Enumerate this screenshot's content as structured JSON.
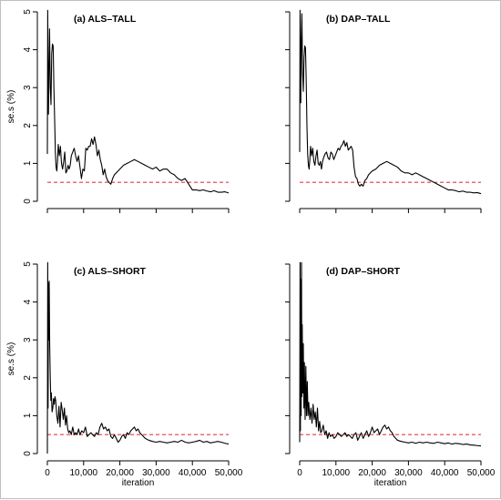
{
  "chart_data": [
    {
      "type": "line",
      "title": "(a) ALS–TALL",
      "ylabel": "se.s (%)",
      "xlabel": "",
      "xlim": [
        0,
        50000
      ],
      "ylim": [
        0,
        5
      ],
      "x_ticks": [
        0,
        10000,
        20000,
        30000,
        40000,
        50000
      ],
      "x_tick_labels": [],
      "y_ticks": [
        0,
        1,
        2,
        3,
        4,
        5
      ],
      "y_tick_labels": [
        "0",
        "1",
        "2",
        "3",
        "4",
        "5"
      ],
      "reference_line": {
        "y": 0.5,
        "color": "#e8383d",
        "style": "dashed"
      },
      "series": [
        {
          "color": "#000000",
          "x": [
            0,
            100,
            200,
            300,
            450,
            600,
            800,
            1000,
            1200,
            1400,
            1600,
            1800,
            2000,
            2200,
            2400,
            2600,
            2800,
            3000,
            3300,
            3600,
            3900,
            4200,
            4500,
            4800,
            5100,
            5400,
            5700,
            6000,
            6300,
            6600,
            7000,
            7400,
            7800,
            8200,
            8600,
            9000,
            9400,
            9800,
            10200,
            10600,
            11000,
            11400,
            11800,
            12200,
            12600,
            13000,
            13400,
            13800,
            14200,
            14600,
            15000,
            15400,
            15800,
            16200,
            16600,
            17000,
            17500,
            18000,
            18500,
            19000,
            19500,
            20000,
            21000,
            22000,
            23000,
            24000,
            25000,
            26000,
            27000,
            28000,
            29000,
            30000,
            31000,
            32000,
            33000,
            34000,
            35000,
            36000,
            37000,
            38000,
            39000,
            40000,
            41000,
            42000,
            43000,
            44000,
            45000,
            46000,
            47000,
            48000,
            49000,
            50000
          ],
          "y": [
            1.25,
            5.2,
            3.3,
            2.3,
            3.5,
            4.55,
            3.0,
            2.55,
            3.9,
            4.15,
            4.1,
            3.0,
            2.2,
            1.3,
            0.9,
            0.8,
            1.05,
            1.5,
            1.2,
            1.45,
            1.0,
            0.85,
            1.05,
            1.3,
            0.75,
            0.8,
            0.95,
            0.85,
            0.95,
            1.2,
            1.3,
            1.4,
            1.2,
            1.05,
            1.2,
            0.9,
            0.6,
            0.85,
            0.8,
            1.4,
            1.35,
            1.45,
            1.45,
            1.65,
            1.5,
            1.7,
            1.5,
            1.2,
            1.35,
            1.1,
            0.95,
            0.7,
            0.85,
            0.65,
            0.55,
            0.5,
            0.45,
            0.6,
            0.7,
            0.75,
            0.8,
            0.85,
            0.95,
            1.0,
            1.05,
            1.1,
            1.05,
            1.0,
            0.95,
            0.9,
            0.85,
            0.9,
            0.8,
            0.85,
            0.85,
            0.75,
            0.7,
            0.6,
            0.55,
            0.6,
            0.45,
            0.3,
            0.3,
            0.28,
            0.3,
            0.27,
            0.25,
            0.28,
            0.24,
            0.24,
            0.25,
            0.22
          ]
        }
      ]
    },
    {
      "type": "line",
      "title": "(b) DAP–TALL",
      "ylabel": "",
      "xlabel": "",
      "xlim": [
        0,
        50000
      ],
      "ylim": [
        0,
        5
      ],
      "x_ticks": [
        0,
        10000,
        20000,
        30000,
        40000,
        50000
      ],
      "x_tick_labels": [],
      "y_ticks": [
        0,
        1,
        2,
        3,
        4,
        5
      ],
      "y_tick_labels": [],
      "reference_line": {
        "y": 0.5,
        "color": "#e8383d",
        "style": "dashed"
      },
      "series": [
        {
          "color": "#000000",
          "x": [
            0,
            100,
            200,
            300,
            450,
            600,
            800,
            1000,
            1200,
            1400,
            1600,
            1800,
            2000,
            2200,
            2400,
            2600,
            2800,
            3000,
            3300,
            3600,
            3900,
            4200,
            4500,
            4800,
            5100,
            5400,
            5700,
            6000,
            6300,
            6600,
            7000,
            7400,
            7800,
            8200,
            8600,
            9000,
            9400,
            9800,
            10200,
            10600,
            11000,
            11400,
            11800,
            12200,
            12600,
            13000,
            13400,
            13800,
            14200,
            14600,
            15000,
            15400,
            15800,
            16200,
            16600,
            17000,
            17500,
            18000,
            18500,
            19000,
            19500,
            20000,
            21000,
            22000,
            23000,
            24000,
            25000,
            26000,
            27000,
            28000,
            29000,
            30000,
            31000,
            32000,
            33000,
            34000,
            35000,
            36000,
            37000,
            38000,
            39000,
            40000,
            41000,
            42000,
            43000,
            44000,
            45000,
            46000,
            47000,
            48000,
            49000,
            50000
          ],
          "y": [
            1.3,
            5.1,
            3.8,
            2.6,
            4.2,
            4.95,
            3.4,
            2.9,
            3.8,
            4.1,
            4.05,
            3.2,
            2.0,
            1.25,
            0.95,
            0.85,
            1.1,
            1.45,
            1.2,
            1.4,
            1.05,
            0.95,
            1.2,
            1.35,
            1.0,
            0.95,
            1.05,
            0.85,
            1.05,
            1.15,
            1.25,
            1.3,
            1.15,
            1.1,
            1.3,
            1.25,
            1.1,
            1.2,
            1.3,
            1.4,
            1.35,
            1.45,
            1.5,
            1.6,
            1.45,
            1.55,
            1.35,
            1.4,
            1.45,
            1.35,
            0.9,
            0.65,
            0.6,
            0.45,
            0.4,
            0.45,
            0.4,
            0.55,
            0.6,
            0.7,
            0.75,
            0.8,
            0.85,
            0.95,
            1.0,
            1.05,
            1.0,
            0.95,
            0.9,
            0.8,
            0.75,
            0.75,
            0.7,
            0.75,
            0.7,
            0.65,
            0.6,
            0.55,
            0.5,
            0.45,
            0.4,
            0.35,
            0.3,
            0.3,
            0.28,
            0.25,
            0.27,
            0.24,
            0.24,
            0.22,
            0.23,
            0.2
          ]
        }
      ]
    },
    {
      "type": "line",
      "title": "(c) ALS–SHORT",
      "ylabel": "se.s (%)",
      "xlabel": "iteration",
      "xlim": [
        0,
        50000
      ],
      "ylim": [
        0,
        5
      ],
      "x_ticks": [
        0,
        10000,
        20000,
        30000,
        40000,
        50000
      ],
      "x_tick_labels": [
        "0",
        "10,000",
        "20,000",
        "30,000",
        "40,000",
        "50,000"
      ],
      "y_ticks": [
        0,
        1,
        2,
        3,
        4,
        5
      ],
      "y_tick_labels": [
        "0",
        "1",
        "2",
        "3",
        "4",
        "5"
      ],
      "reference_line": {
        "y": 0.5,
        "color": "#e8383d",
        "style": "dashed"
      },
      "series": [
        {
          "color": "#000000",
          "x": [
            0,
            100,
            200,
            300,
            400,
            500,
            650,
            800,
            950,
            1100,
            1300,
            1500,
            1700,
            1900,
            2100,
            2300,
            2600,
            2900,
            3200,
            3500,
            3800,
            4100,
            4400,
            4700,
            5000,
            5300,
            5600,
            5900,
            6200,
            6600,
            7000,
            7400,
            7800,
            8200,
            8600,
            9000,
            9500,
            10000,
            10500,
            11000,
            11500,
            12000,
            12500,
            13000,
            13500,
            14000,
            14500,
            15000,
            15500,
            16000,
            16500,
            17000,
            17500,
            18000,
            18500,
            19000,
            19500,
            20000,
            20500,
            21000,
            21500,
            22000,
            22500,
            23000,
            23500,
            24000,
            24500,
            25000,
            25500,
            26000,
            26500,
            27000,
            28000,
            29000,
            30000,
            31000,
            32000,
            33000,
            34000,
            35000,
            36000,
            37000,
            38000,
            39000,
            40000,
            41000,
            42000,
            43000,
            44000,
            45000,
            46000,
            47000,
            48000,
            49000,
            50000
          ],
          "y": [
            0.0,
            5.2,
            1.2,
            4.5,
            3.0,
            4.55,
            2.8,
            2.0,
            1.4,
            1.6,
            1.1,
            1.2,
            1.45,
            1.3,
            1.5,
            1.4,
            1.0,
            0.8,
            1.25,
            0.7,
            1.35,
            1.15,
            0.9,
            1.2,
            0.75,
            1.0,
            0.65,
            0.55,
            0.6,
            0.5,
            0.7,
            0.5,
            0.55,
            0.5,
            0.65,
            0.5,
            0.6,
            0.55,
            0.7,
            0.45,
            0.5,
            0.55,
            0.5,
            0.45,
            0.55,
            0.5,
            0.7,
            0.8,
            0.65,
            0.7,
            0.6,
            0.65,
            0.45,
            0.4,
            0.5,
            0.4,
            0.3,
            0.35,
            0.45,
            0.5,
            0.4,
            0.55,
            0.5,
            0.6,
            0.65,
            0.7,
            0.6,
            0.65,
            0.55,
            0.5,
            0.45,
            0.4,
            0.35,
            0.32,
            0.3,
            0.32,
            0.3,
            0.28,
            0.3,
            0.32,
            0.3,
            0.35,
            0.3,
            0.28,
            0.3,
            0.32,
            0.35,
            0.3,
            0.32,
            0.28,
            0.3,
            0.32,
            0.3,
            0.27,
            0.25
          ]
        }
      ]
    },
    {
      "type": "line",
      "title": "(d) DAP–SHORT",
      "ylabel": "",
      "xlabel": "iteration",
      "xlim": [
        0,
        50000
      ],
      "ylim": [
        0,
        5
      ],
      "x_ticks": [
        0,
        10000,
        20000,
        30000,
        40000,
        50000
      ],
      "x_tick_labels": [
        "0",
        "10,000",
        "20,000",
        "30,000",
        "40,000",
        "50,000"
      ],
      "y_ticks": [
        0,
        1,
        2,
        3,
        4,
        5
      ],
      "y_tick_labels": [],
      "reference_line": {
        "y": 0.5,
        "color": "#e8383d",
        "style": "dashed"
      },
      "series": [
        {
          "color": "#000000",
          "x": [
            0,
            100,
            200,
            300,
            400,
            500,
            600,
            700,
            850,
            1000,
            1150,
            1300,
            1500,
            1700,
            1900,
            2100,
            2300,
            2500,
            2800,
            3100,
            3400,
            3700,
            4000,
            4300,
            4600,
            4900,
            5200,
            5500,
            5800,
            6100,
            6500,
            6900,
            7300,
            7700,
            8100,
            8500,
            9000,
            9500,
            10000,
            10500,
            11000,
            11500,
            12000,
            12500,
            13000,
            13500,
            14000,
            14500,
            15000,
            15500,
            16000,
            16500,
            17000,
            17500,
            18000,
            18500,
            19000,
            19500,
            20000,
            20500,
            21000,
            21500,
            22000,
            22500,
            23000,
            23500,
            24000,
            24500,
            25000,
            25500,
            26000,
            26500,
            27000,
            28000,
            29000,
            30000,
            31000,
            32000,
            33000,
            34000,
            35000,
            36000,
            37000,
            38000,
            39000,
            40000,
            41000,
            42000,
            43000,
            44000,
            45000,
            46000,
            47000,
            48000,
            49000,
            50000
          ],
          "y": [
            0.3,
            5.2,
            0.6,
            4.6,
            1.0,
            5.2,
            1.5,
            3.4,
            1.6,
            2.9,
            1.2,
            2.4,
            0.9,
            2.3,
            1.0,
            1.9,
            1.0,
            1.35,
            0.9,
            1.2,
            0.8,
            1.3,
            0.9,
            1.1,
            0.7,
            1.2,
            0.6,
            0.85,
            0.55,
            0.6,
            0.75,
            0.5,
            0.6,
            0.4,
            0.55,
            0.45,
            0.5,
            0.4,
            0.45,
            0.55,
            0.5,
            0.45,
            0.5,
            0.55,
            0.45,
            0.5,
            0.45,
            0.4,
            0.5,
            0.55,
            0.35,
            0.45,
            0.55,
            0.4,
            0.5,
            0.6,
            0.45,
            0.55,
            0.7,
            0.55,
            0.6,
            0.65,
            0.5,
            0.6,
            0.7,
            0.75,
            0.65,
            0.7,
            0.6,
            0.55,
            0.45,
            0.4,
            0.35,
            0.32,
            0.3,
            0.28,
            0.3,
            0.27,
            0.3,
            0.28,
            0.3,
            0.28,
            0.27,
            0.3,
            0.28,
            0.26,
            0.28,
            0.25,
            0.27,
            0.26,
            0.24,
            0.25,
            0.23,
            0.22,
            0.21,
            0.2
          ]
        }
      ]
    }
  ]
}
